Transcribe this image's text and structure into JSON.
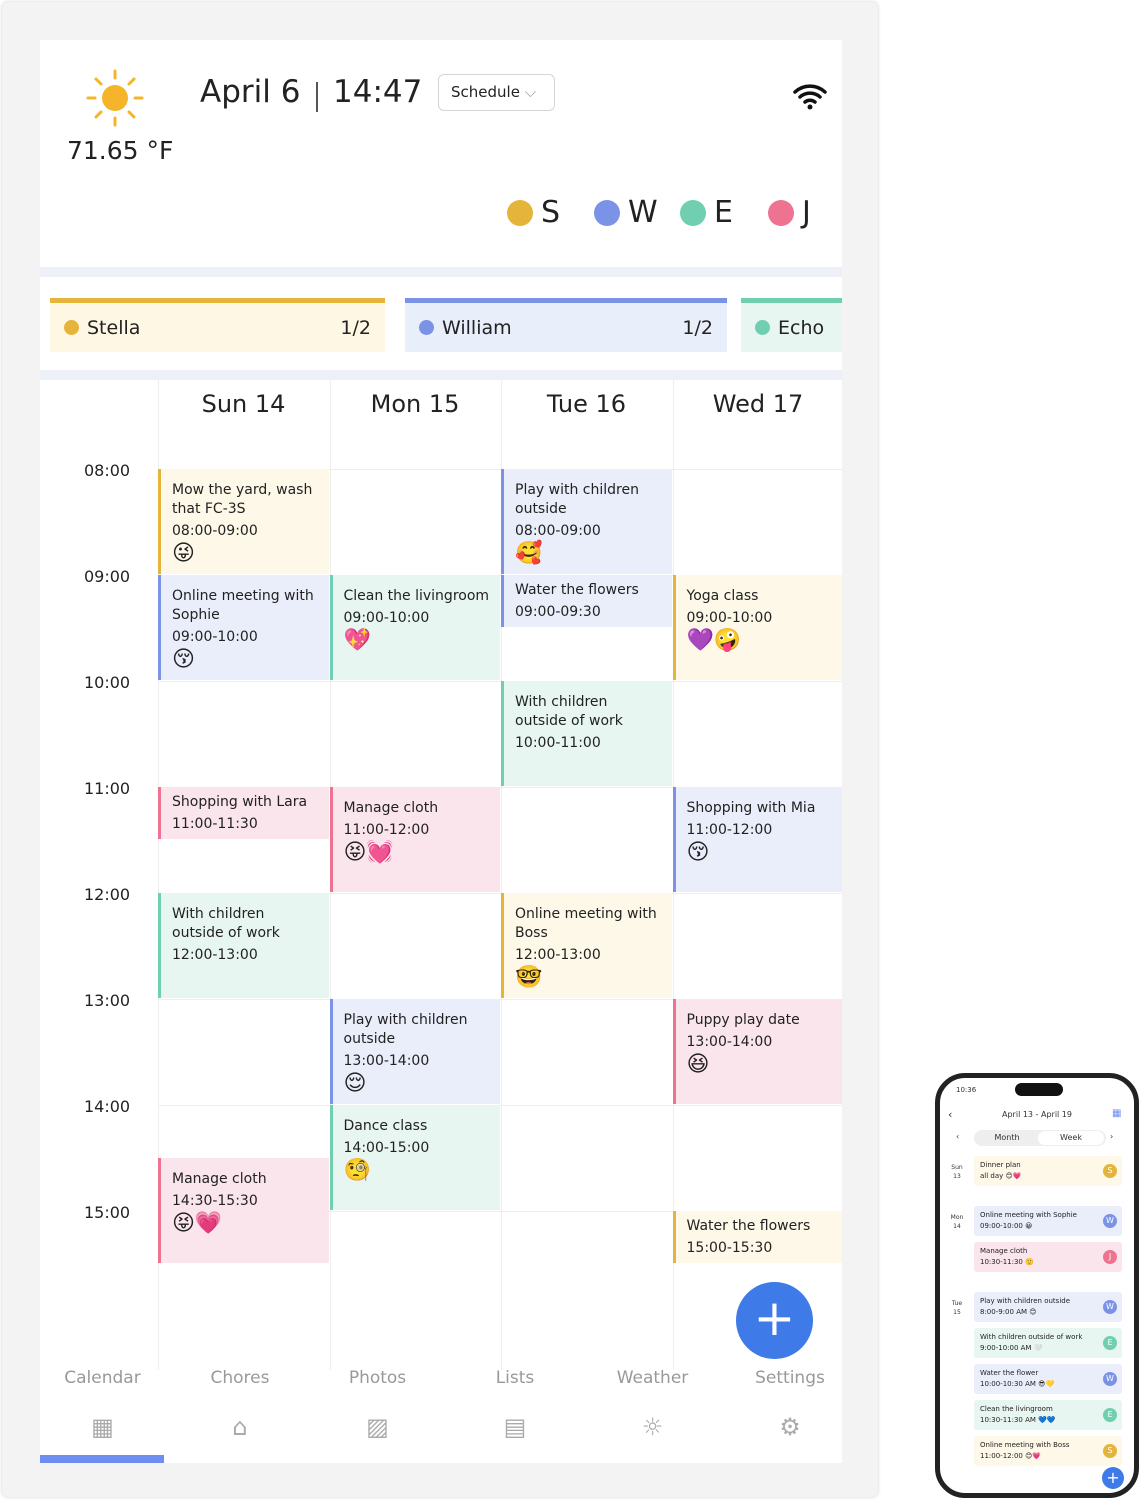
{
  "header": {
    "date": "April 6",
    "time": "14:47",
    "view_select": "Schedule",
    "temperature": "71.65 °F",
    "weather_icon": "sun-icon",
    "wifi_icon": "wifi-icon"
  },
  "legend": [
    {
      "letter": "S",
      "color": "#e5b43a"
    },
    {
      "letter": "W",
      "color": "#7b93e6"
    },
    {
      "letter": "E",
      "color": "#6fcfb0"
    },
    {
      "letter": "J",
      "color": "#ee7390"
    }
  ],
  "members": [
    {
      "name": "Stella",
      "count": "1/2",
      "color": "#e5b43a",
      "bg": "#fdf7e3"
    },
    {
      "name": "William",
      "count": "1/2",
      "color": "#7b93e6",
      "bg": "#e9eefb"
    },
    {
      "name": "Echo",
      "count": "",
      "color": "#6fcfb0",
      "bg": "#e8f6f1"
    }
  ],
  "days": [
    "Sun 14",
    "Mon 15",
    "Tue 16",
    "Wed 17"
  ],
  "hours": [
    "08:00",
    "09:00",
    "10:00",
    "11:00",
    "12:00",
    "13:00",
    "14:00",
    "15:00"
  ],
  "member_colors": {
    "S": {
      "bg": "#fdf8e8",
      "border": "#e5b43a"
    },
    "W": {
      "bg": "#eaeefb",
      "border": "#7b93e6"
    },
    "E": {
      "bg": "#e8f6f1",
      "border": "#6fcfb0"
    },
    "J": {
      "bg": "#fbe5ec",
      "border": "#ee7390"
    }
  },
  "events": [
    {
      "day": 0,
      "start": 8,
      "end": 9,
      "who": "S",
      "title": "Mow the yard, wash that FC-3S",
      "time": "08:00-09:00",
      "emoji": "😜"
    },
    {
      "day": 0,
      "start": 9,
      "end": 10,
      "who": "W",
      "title": "Online meeting with Sophie",
      "time": "09:00-10:00",
      "emoji": "😚"
    },
    {
      "day": 0,
      "start": 11,
      "end": 11.5,
      "who": "J",
      "title": "Shopping with Lara",
      "time": "11:00-11:30",
      "emoji": ""
    },
    {
      "day": 0,
      "start": 12,
      "end": 13,
      "who": "E",
      "title": "With children outside of work",
      "time": "12:00-13:00",
      "emoji": ""
    },
    {
      "day": 0,
      "start": 14.5,
      "end": 15.5,
      "who": "J",
      "title": "Manage cloth",
      "time": "14:30-15:30",
      "emoji": "😝💗"
    },
    {
      "day": 1,
      "start": 9,
      "end": 10,
      "who": "E",
      "title": "Clean the livingroom",
      "time": "09:00-10:00",
      "emoji": "💖"
    },
    {
      "day": 1,
      "start": 11,
      "end": 12,
      "who": "J",
      "title": "Manage cloth",
      "time": "11:00-12:00",
      "emoji": "😝💓"
    },
    {
      "day": 1,
      "start": 13,
      "end": 14,
      "who": "W",
      "title": "Play with children outside",
      "time": "13:00-14:00",
      "emoji": "😌"
    },
    {
      "day": 1,
      "start": 14,
      "end": 15,
      "who": "E",
      "title": "Dance class",
      "time": "14:00-15:00",
      "emoji": "🧐"
    },
    {
      "day": 2,
      "start": 8,
      "end": 9,
      "who": "W",
      "title": "Play with children outside",
      "time": "08:00-09:00",
      "emoji": "🥰"
    },
    {
      "day": 2,
      "start": 9,
      "end": 9.5,
      "who": "W",
      "title": "Water the flowers",
      "time": "09:00-09:30",
      "emoji": ""
    },
    {
      "day": 2,
      "start": 10,
      "end": 11,
      "who": "E",
      "title": "With children outside of work",
      "time": "10:00-11:00",
      "emoji": ""
    },
    {
      "day": 2,
      "start": 12,
      "end": 13,
      "who": "S",
      "title": "Online meeting with Boss",
      "time": "12:00-13:00",
      "emoji": "🤓"
    },
    {
      "day": 3,
      "start": 9,
      "end": 10,
      "who": "S",
      "title": "Yoga class",
      "time": "09:00-10:00",
      "emoji": "💜🤪"
    },
    {
      "day": 3,
      "start": 11,
      "end": 12,
      "who": "W",
      "title": "Shopping with Mia",
      "time": "11:00-12:00",
      "emoji": "😚"
    },
    {
      "day": 3,
      "start": 13,
      "end": 14,
      "who": "J",
      "title": "Puppy play date",
      "time": "13:00-14:00",
      "emoji": "😆"
    },
    {
      "day": 3,
      "start": 15,
      "end": 15.5,
      "who": "S",
      "title": "Water the flowers",
      "time": "15:00-15:30",
      "emoji": ""
    }
  ],
  "nav": [
    {
      "label": "Calendar",
      "icon": "calendar-icon",
      "glyph": "▦"
    },
    {
      "label": "Chores",
      "icon": "broom-icon",
      "glyph": "⌂"
    },
    {
      "label": "Photos",
      "icon": "photo-icon",
      "glyph": "▨"
    },
    {
      "label": "Lists",
      "icon": "list-icon",
      "glyph": "▤"
    },
    {
      "label": "Weather",
      "icon": "sun-icon",
      "glyph": "☼"
    },
    {
      "label": "Settings",
      "icon": "gear-icon",
      "glyph": "⚙"
    }
  ],
  "fab": "+",
  "phone": {
    "status_time": "10:36",
    "range": "April 13 - April 19",
    "tabs": [
      "Month",
      "Week"
    ],
    "active_tab": "Week",
    "groups": [
      {
        "day": "Sun",
        "num": "13",
        "items": [
          {
            "title": "Dinner plan",
            "time": "all day",
            "emoji": "😊💗",
            "who": "S"
          }
        ]
      },
      {
        "day": "Mon",
        "num": "14",
        "items": [
          {
            "title": "Online meeting with Sophie",
            "time": "09:00-10:00",
            "emoji": "😀",
            "who": "W"
          },
          {
            "title": "Manage cloth",
            "time": "10:30-11:30",
            "emoji": "🙂",
            "who": "J"
          }
        ]
      },
      {
        "day": "Tue",
        "num": "15",
        "items": [
          {
            "title": "Play with children outside",
            "time": "8:00-9:00 AM",
            "emoji": "😊",
            "who": "W"
          },
          {
            "title": "With children outside of work",
            "time": "9:00-10:00 AM",
            "emoji": "🤍",
            "who": "E"
          },
          {
            "title": "Water the flower",
            "time": "10:00-10:30 AM",
            "emoji": "😎💛",
            "who": "W"
          },
          {
            "title": "Clean the livingroom",
            "time": "10:30-11:30 AM",
            "emoji": "💙💙",
            "who": "E"
          },
          {
            "title": "Online meeting with Boss",
            "time": "11:00-12:00",
            "emoji": "😊💗",
            "who": "S"
          }
        ]
      }
    ]
  }
}
